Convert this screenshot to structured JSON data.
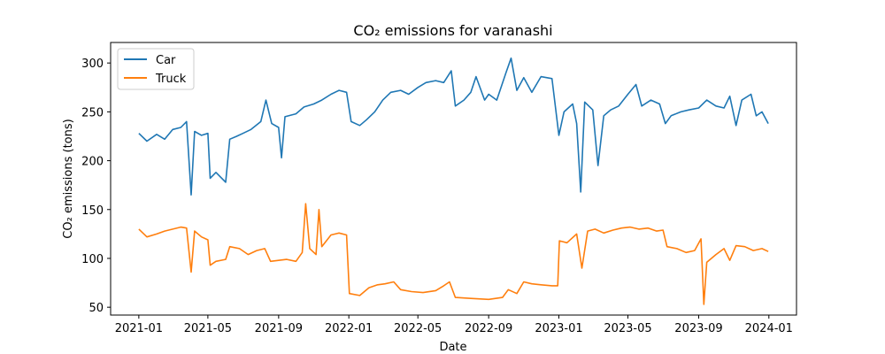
{
  "chart_data": {
    "type": "line",
    "title": "CO₂ emissions for varanashi",
    "xlabel": "Date",
    "ylabel": "CO₂ emissions (tons)",
    "x_ticks": [
      "2021-01",
      "2021-05",
      "2021-09",
      "2022-01",
      "2022-05",
      "2022-09",
      "2023-01",
      "2023-05",
      "2023-09",
      "2024-01"
    ],
    "y_ticks": [
      50,
      100,
      150,
      200,
      250,
      300
    ],
    "xlim": [
      "2020-11-13",
      "2024-02-18"
    ],
    "ylim": [
      42,
      321
    ],
    "grid": false,
    "legend_position": "top-left",
    "series": [
      {
        "name": "Car",
        "color": "#1f77b4",
        "points": [
          [
            "2021-01-01",
            228
          ],
          [
            "2021-01-15",
            220
          ],
          [
            "2021-02-01",
            227
          ],
          [
            "2021-02-15",
            222
          ],
          [
            "2021-03-01",
            232
          ],
          [
            "2021-03-15",
            234
          ],
          [
            "2021-03-25",
            240
          ],
          [
            "2021-04-02",
            165
          ],
          [
            "2021-04-08",
            230
          ],
          [
            "2021-04-20",
            226
          ],
          [
            "2021-05-01",
            228
          ],
          [
            "2021-05-05",
            182
          ],
          [
            "2021-05-15",
            188
          ],
          [
            "2021-06-01",
            178
          ],
          [
            "2021-06-08",
            222
          ],
          [
            "2021-06-20",
            225
          ],
          [
            "2021-07-01",
            228
          ],
          [
            "2021-07-15",
            232
          ],
          [
            "2021-08-01",
            240
          ],
          [
            "2021-08-10",
            262
          ],
          [
            "2021-08-20",
            238
          ],
          [
            "2021-09-01",
            234
          ],
          [
            "2021-09-06",
            203
          ],
          [
            "2021-09-12",
            245
          ],
          [
            "2021-10-01",
            248
          ],
          [
            "2021-10-15",
            255
          ],
          [
            "2021-11-01",
            258
          ],
          [
            "2021-11-15",
            262
          ],
          [
            "2021-12-01",
            268
          ],
          [
            "2021-12-15",
            272
          ],
          [
            "2021-12-28",
            270
          ],
          [
            "2022-01-05",
            240
          ],
          [
            "2022-01-20",
            236
          ],
          [
            "2022-02-01",
            242
          ],
          [
            "2022-02-15",
            250
          ],
          [
            "2022-03-01",
            262
          ],
          [
            "2022-03-15",
            270
          ],
          [
            "2022-04-01",
            272
          ],
          [
            "2022-04-15",
            268
          ],
          [
            "2022-05-01",
            275
          ],
          [
            "2022-05-15",
            280
          ],
          [
            "2022-06-01",
            282
          ],
          [
            "2022-06-15",
            280
          ],
          [
            "2022-06-28",
            292
          ],
          [
            "2022-07-05",
            256
          ],
          [
            "2022-07-20",
            262
          ],
          [
            "2022-08-01",
            270
          ],
          [
            "2022-08-10",
            286
          ],
          [
            "2022-08-25",
            262
          ],
          [
            "2022-09-01",
            268
          ],
          [
            "2022-09-15",
            262
          ],
          [
            "2022-10-01",
            290
          ],
          [
            "2022-10-10",
            305
          ],
          [
            "2022-10-20",
            272
          ],
          [
            "2022-11-01",
            285
          ],
          [
            "2022-11-15",
            270
          ],
          [
            "2022-12-01",
            286
          ],
          [
            "2022-12-20",
            284
          ],
          [
            "2023-01-01",
            226
          ],
          [
            "2023-01-10",
            250
          ],
          [
            "2023-01-25",
            258
          ],
          [
            "2023-02-01",
            238
          ],
          [
            "2023-02-08",
            168
          ],
          [
            "2023-02-15",
            260
          ],
          [
            "2023-03-01",
            252
          ],
          [
            "2023-03-10",
            195
          ],
          [
            "2023-03-20",
            246
          ],
          [
            "2023-04-01",
            252
          ],
          [
            "2023-04-15",
            256
          ],
          [
            "2023-05-01",
            268
          ],
          [
            "2023-05-15",
            278
          ],
          [
            "2023-05-25",
            256
          ],
          [
            "2023-06-10",
            262
          ],
          [
            "2023-06-25",
            258
          ],
          [
            "2023-07-05",
            238
          ],
          [
            "2023-07-15",
            246
          ],
          [
            "2023-08-01",
            250
          ],
          [
            "2023-08-15",
            252
          ],
          [
            "2023-09-01",
            254
          ],
          [
            "2023-09-15",
            262
          ],
          [
            "2023-10-01",
            256
          ],
          [
            "2023-10-15",
            254
          ],
          [
            "2023-10-25",
            266
          ],
          [
            "2023-11-05",
            236
          ],
          [
            "2023-11-15",
            262
          ],
          [
            "2023-12-01",
            268
          ],
          [
            "2023-12-10",
            246
          ],
          [
            "2023-12-20",
            250
          ],
          [
            "2023-12-31",
            238
          ]
        ]
      },
      {
        "name": "Truck",
        "color": "#ff7f0e",
        "points": [
          [
            "2021-01-01",
            130
          ],
          [
            "2021-01-15",
            122
          ],
          [
            "2021-02-01",
            125
          ],
          [
            "2021-02-15",
            128
          ],
          [
            "2021-03-01",
            130
          ],
          [
            "2021-03-15",
            132
          ],
          [
            "2021-03-25",
            131
          ],
          [
            "2021-04-02",
            86
          ],
          [
            "2021-04-08",
            128
          ],
          [
            "2021-04-20",
            122
          ],
          [
            "2021-05-01",
            119
          ],
          [
            "2021-05-05",
            93
          ],
          [
            "2021-05-15",
            97
          ],
          [
            "2021-06-01",
            99
          ],
          [
            "2021-06-08",
            112
          ],
          [
            "2021-06-25",
            110
          ],
          [
            "2021-07-10",
            104
          ],
          [
            "2021-07-25",
            108
          ],
          [
            "2021-08-08",
            110
          ],
          [
            "2021-08-18",
            97
          ],
          [
            "2021-09-01",
            98
          ],
          [
            "2021-09-15",
            99
          ],
          [
            "2021-10-01",
            97
          ],
          [
            "2021-10-12",
            106
          ],
          [
            "2021-10-18",
            156
          ],
          [
            "2021-10-25",
            110
          ],
          [
            "2021-11-05",
            104
          ],
          [
            "2021-11-10",
            150
          ],
          [
            "2021-11-15",
            112
          ],
          [
            "2021-12-01",
            124
          ],
          [
            "2021-12-15",
            126
          ],
          [
            "2021-12-28",
            124
          ],
          [
            "2022-01-02",
            64
          ],
          [
            "2022-01-20",
            62
          ],
          [
            "2022-02-05",
            70
          ],
          [
            "2022-02-20",
            73
          ],
          [
            "2022-03-05",
            74
          ],
          [
            "2022-03-20",
            76
          ],
          [
            "2022-04-01",
            68
          ],
          [
            "2022-04-20",
            66
          ],
          [
            "2022-05-10",
            65
          ],
          [
            "2022-06-01",
            67
          ],
          [
            "2022-06-15",
            72
          ],
          [
            "2022-06-25",
            76
          ],
          [
            "2022-07-05",
            60
          ],
          [
            "2022-08-01",
            59
          ],
          [
            "2022-09-01",
            58
          ],
          [
            "2022-09-25",
            60
          ],
          [
            "2022-10-05",
            68
          ],
          [
            "2022-10-20",
            64
          ],
          [
            "2022-11-01",
            76
          ],
          [
            "2022-11-15",
            74
          ],
          [
            "2022-12-01",
            73
          ],
          [
            "2022-12-20",
            72
          ],
          [
            "2022-12-30",
            72
          ],
          [
            "2023-01-02",
            118
          ],
          [
            "2023-01-15",
            116
          ],
          [
            "2023-02-01",
            125
          ],
          [
            "2023-02-10",
            90
          ],
          [
            "2023-02-20",
            128
          ],
          [
            "2023-03-05",
            130
          ],
          [
            "2023-03-20",
            126
          ],
          [
            "2023-04-05",
            129
          ],
          [
            "2023-04-20",
            131
          ],
          [
            "2023-05-05",
            132
          ],
          [
            "2023-05-20",
            130
          ],
          [
            "2023-06-05",
            131
          ],
          [
            "2023-06-20",
            128
          ],
          [
            "2023-07-01",
            129
          ],
          [
            "2023-07-08",
            112
          ],
          [
            "2023-07-25",
            110
          ],
          [
            "2023-08-10",
            106
          ],
          [
            "2023-08-25",
            108
          ],
          [
            "2023-09-05",
            120
          ],
          [
            "2023-09-10",
            53
          ],
          [
            "2023-09-15",
            96
          ],
          [
            "2023-10-01",
            104
          ],
          [
            "2023-10-15",
            110
          ],
          [
            "2023-10-25",
            98
          ],
          [
            "2023-11-05",
            113
          ],
          [
            "2023-11-20",
            112
          ],
          [
            "2023-12-05",
            108
          ],
          [
            "2023-12-20",
            110
          ],
          [
            "2023-12-31",
            107
          ]
        ]
      }
    ]
  }
}
